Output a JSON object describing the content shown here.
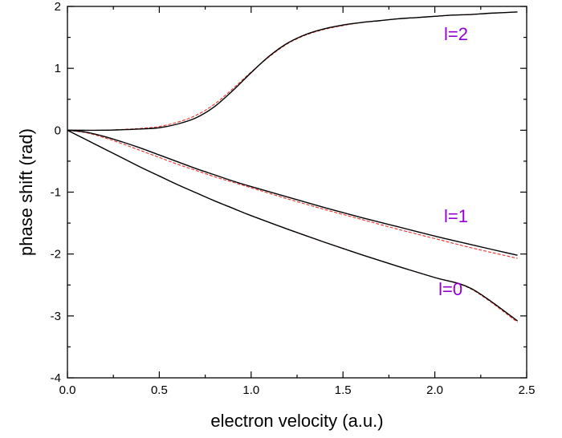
{
  "chart_data": {
    "type": "line",
    "title": "",
    "xlabel": "electron velocity (a.u.)",
    "ylabel": "phase shift (rad)",
    "xlim": [
      0.0,
      2.5
    ],
    "ylim": [
      -4,
      2
    ],
    "x_ticks": [
      0.0,
      0.5,
      1.0,
      1.5,
      2.0,
      2.5
    ],
    "x_tick_labels": [
      "0.0",
      "0.5",
      "1.0",
      "1.5",
      "2.0",
      "2.5"
    ],
    "y_ticks": [
      -4,
      -3,
      -2,
      -1,
      0,
      1,
      2
    ],
    "y_tick_labels": [
      "-4",
      "-3",
      "-2",
      "-1",
      "0",
      "1",
      "2"
    ],
    "grid": false,
    "annotation_color": "#9400D3",
    "series": [
      {
        "label": "l=2",
        "style": "solid",
        "color": "#000000",
        "x": [
          0.0,
          0.2,
          0.4,
          0.5,
          0.6,
          0.7,
          0.8,
          0.9,
          1.0,
          1.1,
          1.2,
          1.3,
          1.4,
          1.5,
          1.6,
          1.7,
          1.8,
          1.9,
          2.0,
          2.1,
          2.2,
          2.3,
          2.45
        ],
        "y": [
          0.0,
          0.0,
          0.02,
          0.04,
          0.1,
          0.2,
          0.38,
          0.64,
          0.93,
          1.2,
          1.41,
          1.55,
          1.64,
          1.7,
          1.74,
          1.77,
          1.8,
          1.82,
          1.84,
          1.86,
          1.87,
          1.89,
          1.91
        ],
        "annotation": {
          "text": "l=2",
          "x": 2.05,
          "y": 1.56
        }
      },
      {
        "style": "dashed",
        "color": "#E8302A",
        "x": [
          0.0,
          0.2,
          0.4,
          0.5,
          0.6,
          0.7,
          0.8,
          0.9,
          1.0,
          1.1,
          1.2,
          1.3,
          1.4,
          1.5,
          1.6,
          1.7,
          1.8,
          1.9,
          2.0,
          2.1,
          2.2,
          2.3,
          2.45
        ],
        "y": [
          0.0,
          0.0,
          0.03,
          0.06,
          0.13,
          0.24,
          0.42,
          0.67,
          0.94,
          1.19,
          1.4,
          1.54,
          1.63,
          1.69,
          1.74,
          1.77,
          1.8,
          1.82,
          1.84,
          1.86,
          1.87,
          1.89,
          1.91
        ]
      },
      {
        "label": "l=1",
        "style": "solid",
        "color": "#000000",
        "x": [
          0.0,
          0.1,
          0.2,
          0.3,
          0.4,
          0.5,
          0.6,
          0.7,
          0.8,
          0.9,
          1.0,
          1.2,
          1.4,
          1.6,
          1.8,
          2.0,
          2.2,
          2.45
        ],
        "y": [
          0.0,
          -0.03,
          -0.1,
          -0.19,
          -0.29,
          -0.4,
          -0.51,
          -0.62,
          -0.72,
          -0.82,
          -0.91,
          -1.08,
          -1.25,
          -1.41,
          -1.56,
          -1.71,
          -1.85,
          -2.02
        ],
        "annotation": {
          "text": "l=1",
          "x": 2.05,
          "y": -1.38
        }
      },
      {
        "style": "dashed",
        "color": "#E8302A",
        "x": [
          0.0,
          0.1,
          0.2,
          0.3,
          0.4,
          0.5,
          0.6,
          0.7,
          0.8,
          0.9,
          1.0,
          1.2,
          1.4,
          1.6,
          1.8,
          2.0,
          2.2,
          2.45
        ],
        "y": [
          0.0,
          -0.04,
          -0.12,
          -0.22,
          -0.33,
          -0.44,
          -0.55,
          -0.65,
          -0.75,
          -0.84,
          -0.93,
          -1.11,
          -1.28,
          -1.44,
          -1.6,
          -1.75,
          -1.9,
          -2.07
        ]
      },
      {
        "label": "l=0",
        "style": "solid",
        "color": "#000000",
        "x": [
          0.0,
          0.1,
          0.2,
          0.3,
          0.4,
          0.5,
          0.6,
          0.7,
          0.8,
          0.9,
          1.0,
          1.2,
          1.4,
          1.6,
          1.8,
          2.0,
          2.2,
          2.45
        ],
        "y": [
          0.0,
          -0.15,
          -0.3,
          -0.45,
          -0.6,
          -0.74,
          -0.88,
          -1.01,
          -1.14,
          -1.26,
          -1.38,
          -1.6,
          -1.81,
          -2.01,
          -2.2,
          -2.38,
          -2.56,
          -3.08
        ],
        "annotation": {
          "text": "l=0",
          "x": 2.02,
          "y": -2.56
        }
      },
      {
        "style": "dashed",
        "color": "#E8302A",
        "x": [
          0.0,
          0.1,
          0.2,
          0.3,
          0.4,
          0.5,
          0.6,
          0.7,
          0.8,
          0.9,
          1.0,
          1.2,
          1.4,
          1.6,
          1.8,
          2.0,
          2.2,
          2.45
        ],
        "y": [
          0.0,
          -0.15,
          -0.3,
          -0.45,
          -0.6,
          -0.74,
          -0.88,
          -1.01,
          -1.14,
          -1.26,
          -1.38,
          -1.6,
          -1.81,
          -2.01,
          -2.2,
          -2.38,
          -2.57,
          -3.1
        ]
      }
    ]
  }
}
